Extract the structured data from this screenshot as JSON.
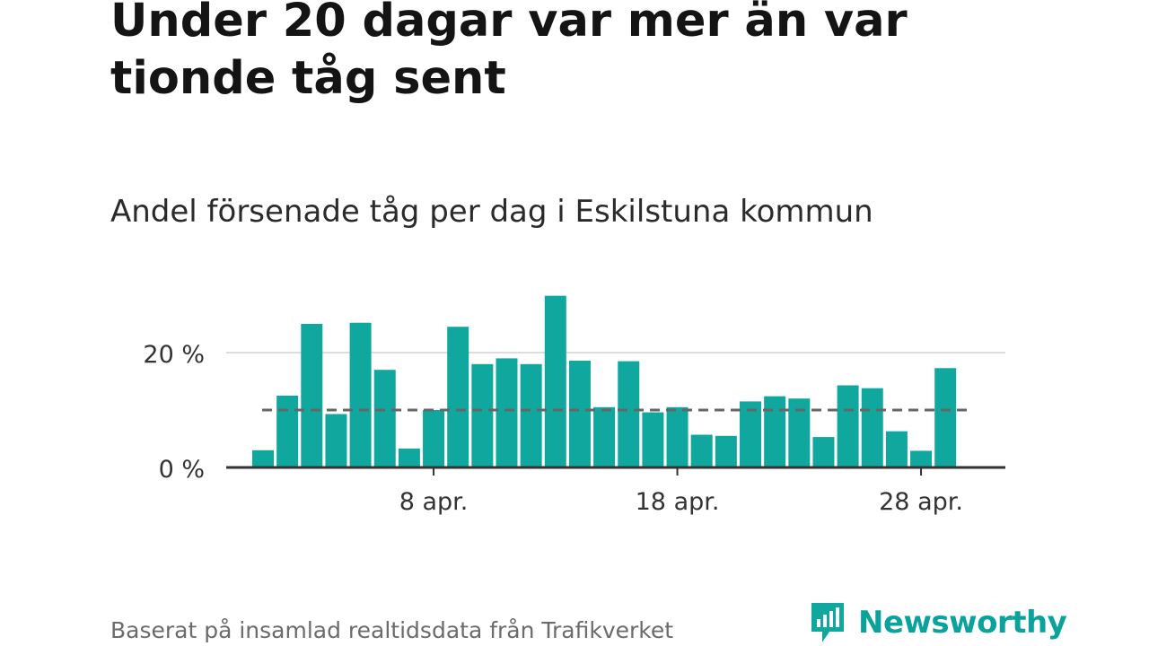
{
  "header": {
    "title": "Under 20 dagar var mer än var tionde tåg sent",
    "subtitle": "Andel försenade tåg per dag i Eskilstuna kommun"
  },
  "footer": {
    "source": "Baserat på insamlad realtidsdata från Trafikverket",
    "brand": "Newsworthy"
  },
  "colors": {
    "bar": "#10a89e",
    "gridline": "#dddddd",
    "axis": "#333333",
    "reference_line": "#666666",
    "brand": "#0aa39b"
  },
  "chart_data": {
    "type": "bar",
    "categories": [
      "1 apr.",
      "2 apr.",
      "3 apr.",
      "4 apr.",
      "5 apr.",
      "6 apr.",
      "7 apr.",
      "8 apr.",
      "9 apr.",
      "10 apr.",
      "11 apr.",
      "12 apr.",
      "13 apr.",
      "14 apr.",
      "15 apr.",
      "16 apr.",
      "17 apr.",
      "18 apr.",
      "19 apr.",
      "20 apr.",
      "21 apr.",
      "22 apr.",
      "23 apr.",
      "24 apr.",
      "25 apr.",
      "26 apr.",
      "27 apr.",
      "28 apr.",
      "29 apr."
    ],
    "values": [
      3.0,
      12.5,
      25.0,
      9.3,
      25.2,
      17.0,
      3.3,
      10.0,
      24.5,
      18.0,
      19.0,
      18.0,
      29.9,
      18.6,
      10.5,
      18.5,
      9.6,
      10.5,
      5.7,
      5.5,
      11.5,
      12.4,
      12.0,
      5.3,
      14.3,
      13.8,
      6.3,
      2.9,
      17.3
    ],
    "reference_line": 10,
    "yticks": [
      0,
      20
    ],
    "ytick_labels": [
      "0 %",
      "20 %"
    ],
    "xticks": [
      "8 apr.",
      "18 apr.",
      "28 apr."
    ],
    "ylim": [
      0,
      30
    ],
    "grid": true,
    "legend": "none"
  }
}
